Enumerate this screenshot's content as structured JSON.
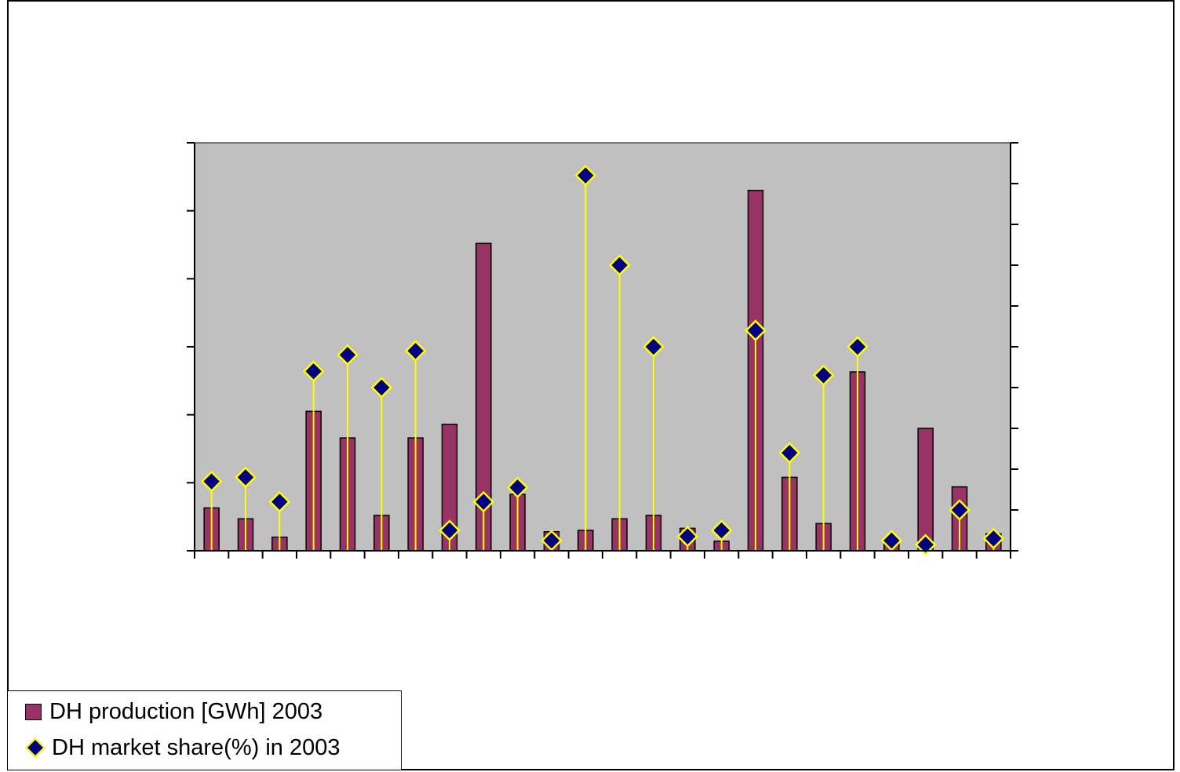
{
  "chart_data": {
    "type": "bar",
    "title": "",
    "xlabel": "",
    "ylabel": "",
    "y2label": "",
    "categories": [
      "",
      "",
      "",
      "",
      "",
      "",
      "",
      "",
      "",
      "",
      "",
      "",
      "",
      "",
      "",
      "",
      "",
      "",
      "",
      "",
      "",
      "",
      "",
      ""
    ],
    "ylim": [
      0,
      6
    ],
    "y2lim": [
      0,
      10
    ],
    "grid": false,
    "legend_position": "bottom-left",
    "colors": {
      "plot_background": "#c0c0c0",
      "bar": "#993366",
      "marker": "#000080",
      "marker_edge": "#ffff00",
      "drop_line": "#ffff00"
    },
    "series": [
      {
        "name": "DH production [GWh] 2003",
        "type": "bar",
        "axis": "left",
        "values": [
          0.63,
          0.47,
          0.2,
          2.05,
          1.66,
          0.52,
          1.66,
          1.86,
          4.52,
          0.83,
          0.28,
          0.3,
          0.47,
          0.52,
          0.33,
          0.14,
          5.3,
          1.08,
          0.4,
          2.63,
          0.1,
          1.8,
          0.94,
          0.25
        ]
      },
      {
        "name": "DH market share(%) in 2003",
        "type": "line-markers",
        "axis": "right",
        "values": [
          1.7,
          1.8,
          1.2,
          4.4,
          4.8,
          4.0,
          4.9,
          0.5,
          1.2,
          1.55,
          0.25,
          9.2,
          7.0,
          5.0,
          0.35,
          0.5,
          5.4,
          2.4,
          4.3,
          5.0,
          0.25,
          0.15,
          1.0,
          0.3
        ]
      }
    ]
  },
  "legend": {
    "items": [
      {
        "label": "DH production [GWh] 2003"
      },
      {
        "label": "DH market share(%) in 2003"
      }
    ]
  }
}
